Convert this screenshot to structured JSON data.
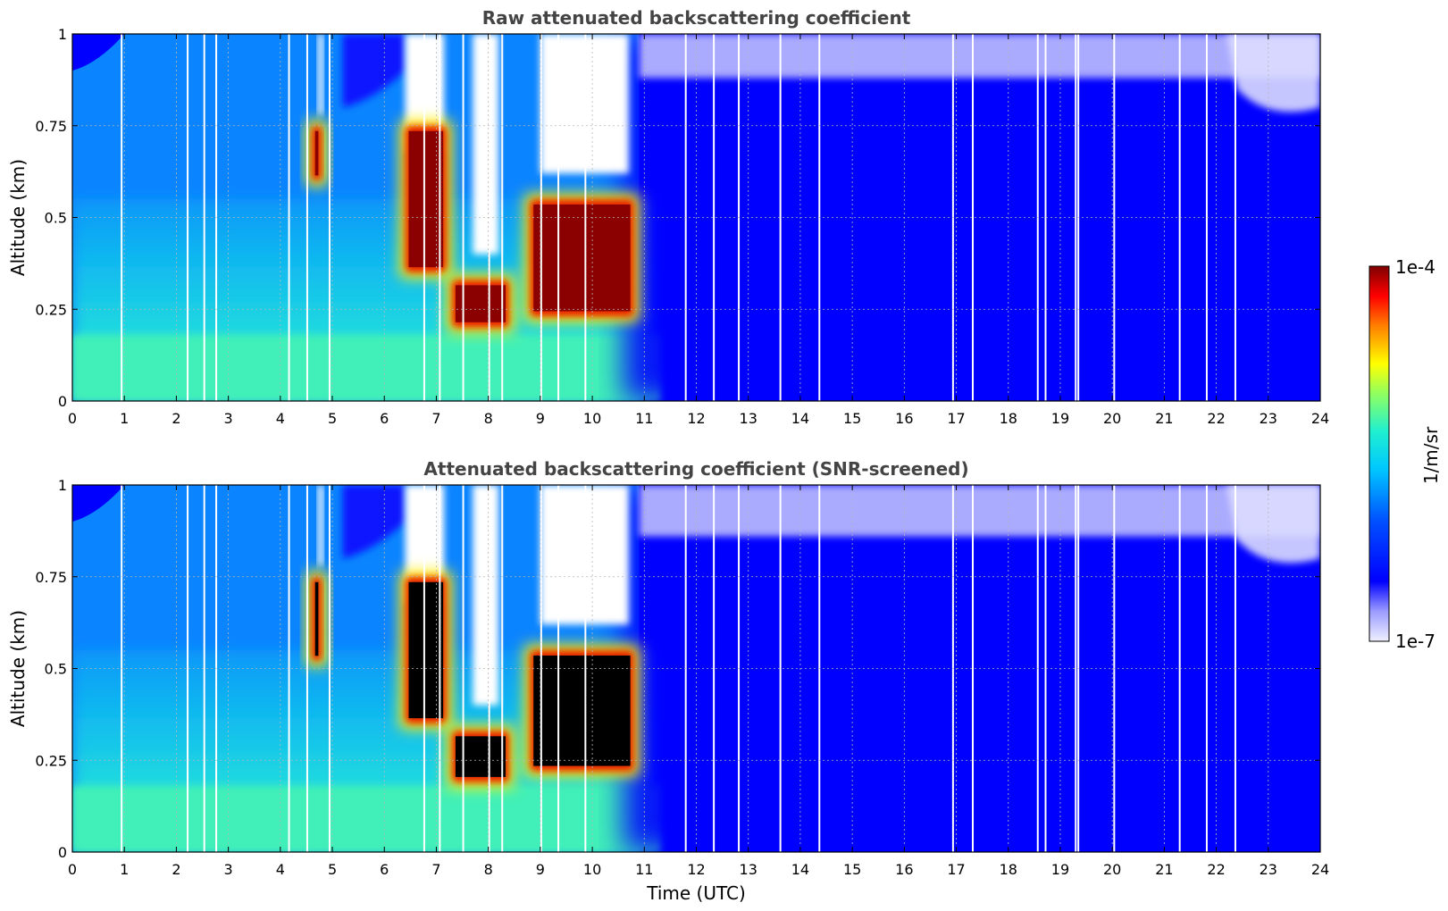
{
  "chart_data": [
    {
      "type": "heatmap",
      "title": "Raw attenuated backscattering coefficient",
      "xlabel": "",
      "ylabel": "Altitude (km)",
      "xlim": [
        0,
        24
      ],
      "ylim": [
        0,
        1
      ],
      "xticks": [
        "0",
        "1",
        "2",
        "3",
        "4",
        "5",
        "6",
        "7",
        "8",
        "9",
        "10",
        "11",
        "12",
        "13",
        "14",
        "15",
        "16",
        "17",
        "18",
        "19",
        "20",
        "21",
        "22",
        "23",
        "24"
      ],
      "yticks": [
        "0",
        "0.25",
        "0.5",
        "0.75",
        "1"
      ],
      "grid": true,
      "screened": false,
      "features": [
        {
          "kind": "cloud",
          "x": [
            4.6,
            4.8
          ],
          "y": [
            0.6,
            0.75
          ]
        },
        {
          "kind": "cloud",
          "x": [
            6.4,
            7.2
          ],
          "y": [
            0.35,
            0.75
          ]
        },
        {
          "kind": "cloud",
          "x": [
            7.3,
            8.4
          ],
          "y": [
            0.2,
            0.33
          ]
        },
        {
          "kind": "cloud",
          "x": [
            8.8,
            10.8
          ],
          "y": [
            0.23,
            0.55
          ]
        }
      ]
    },
    {
      "type": "heatmap",
      "title": "Attenuated backscattering coefficient (SNR-screened)",
      "xlabel": "Time (UTC)",
      "ylabel": "Altitude (km)",
      "xlim": [
        0,
        24
      ],
      "ylim": [
        0,
        1
      ],
      "xticks": [
        "0",
        "1",
        "2",
        "3",
        "4",
        "5",
        "6",
        "7",
        "8",
        "9",
        "10",
        "11",
        "12",
        "13",
        "14",
        "15",
        "16",
        "17",
        "18",
        "19",
        "20",
        "21",
        "22",
        "23",
        "24"
      ],
      "yticks": [
        "0",
        "0.25",
        "0.5",
        "0.75",
        "1"
      ],
      "grid": true,
      "screened": true,
      "features": [
        {
          "kind": "cloud",
          "x": [
            4.6,
            4.8
          ],
          "y": [
            0.52,
            0.75
          ]
        },
        {
          "kind": "cloud",
          "x": [
            6.4,
            7.2
          ],
          "y": [
            0.35,
            0.75
          ]
        },
        {
          "kind": "cloud",
          "x": [
            7.3,
            8.4
          ],
          "y": [
            0.19,
            0.33
          ]
        },
        {
          "kind": "cloud",
          "x": [
            8.8,
            10.8
          ],
          "y": [
            0.22,
            0.55
          ]
        }
      ]
    }
  ],
  "colorbar": {
    "max_label": "1e-4",
    "min_label": "1e-7",
    "unit_label": "1/m/sr",
    "range": [
      1e-07,
      0.0001
    ],
    "scale": "log",
    "colormap": "jet"
  },
  "colors": {
    "background_blue": "#0000ff",
    "aerosol_cyan": "#1ee6c8",
    "cloud_red": "#8b0000",
    "saturated_black": "#000000",
    "low_signal_white": "#ffffff"
  }
}
